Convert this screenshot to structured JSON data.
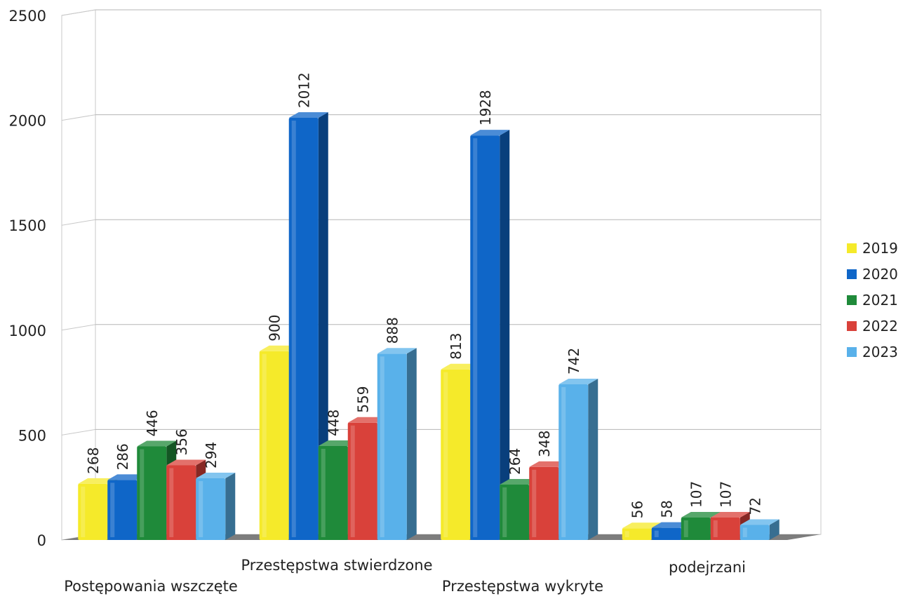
{
  "chart_data": {
    "type": "bar",
    "title": "",
    "xlabel": "",
    "ylabel": "",
    "ylim": [
      0,
      2500
    ],
    "yticks": [
      0,
      500,
      1000,
      1500,
      2000,
      2500
    ],
    "grid": true,
    "legend_position": "right",
    "categories": [
      "Postępowania wszczęte",
      "Przestępstwa stwierdzone",
      "Przestępstwa wykryte",
      "podejrzani"
    ],
    "series": [
      {
        "name": "2019",
        "color": "#f5ea2a",
        "values": [
          268,
          900,
          813,
          56
        ]
      },
      {
        "name": "2020",
        "color": "#0f66c8",
        "values": [
          286,
          2012,
          1928,
          58
        ]
      },
      {
        "name": "2021",
        "color": "#1f8a3a",
        "values": [
          446,
          448,
          264,
          107
        ]
      },
      {
        "name": "2022",
        "color": "#d9413a",
        "values": [
          356,
          559,
          348,
          107
        ]
      },
      {
        "name": "2023",
        "color": "#59b1ea",
        "values": [
          294,
          888,
          742,
          72
        ]
      }
    ]
  }
}
